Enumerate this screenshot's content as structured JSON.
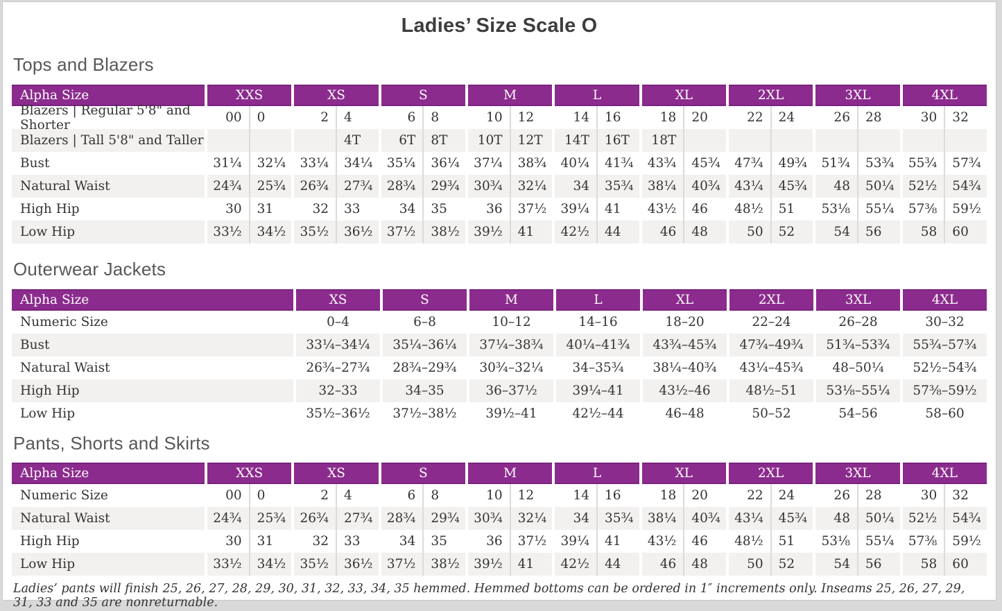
{
  "page": {
    "title": "Ladies’ Size Scale O",
    "footnote": "Ladies’ pants will finish 25, 26, 27, 28, 29, 30, 31, 32, 33, 34, 35 hemmed. Hemmed bottoms can be ordered in 1″ increments only. Inseams 25, 26, 27, 29, 31, 33 and 35 are nonreturnable."
  },
  "colors": {
    "header_purple": "#8C2B8E",
    "header_purple_dark": "#7A2380",
    "row_stripe": "#F2F1EF",
    "page_background": "#FFFFFF",
    "surround_gray": "#D9D9D9"
  },
  "tables": [
    {
      "section": "Tops and Blazers",
      "header_label": "Alpha Size",
      "split": true,
      "sizes": [
        "XXS",
        "XS",
        "S",
        "M",
        "L",
        "XL",
        "2XL",
        "3XL",
        "4XL"
      ],
      "rows": [
        {
          "label": "Blazers  |  Regular 5'8\" and Shorter",
          "cells": [
            [
              "00",
              "0"
            ],
            [
              "2",
              "4"
            ],
            [
              "6",
              "8"
            ],
            [
              "10",
              "12"
            ],
            [
              "14",
              "16"
            ],
            [
              "18",
              "20"
            ],
            [
              "22",
              "24"
            ],
            [
              "26",
              "28"
            ],
            [
              "30",
              "32"
            ]
          ]
        },
        {
          "label": "Blazers  |  Tall 5'8\" and Taller",
          "cells": [
            [
              "",
              ""
            ],
            [
              "",
              "4T"
            ],
            [
              "6T",
              "8T"
            ],
            [
              "10T",
              "12T"
            ],
            [
              "14T",
              "16T"
            ],
            [
              "18T",
              ""
            ],
            [
              "",
              ""
            ],
            [
              "",
              ""
            ],
            [
              "",
              ""
            ]
          ]
        },
        {
          "label": "Bust",
          "cells": [
            [
              "31¼",
              "32¼"
            ],
            [
              "33¼",
              "34¼"
            ],
            [
              "35¼",
              "36¼"
            ],
            [
              "37¼",
              "38¾"
            ],
            [
              "40¼",
              "41¾"
            ],
            [
              "43¾",
              "45¾"
            ],
            [
              "47¾",
              "49¾"
            ],
            [
              "51¾",
              "53¾"
            ],
            [
              "55¾",
              "57¾"
            ]
          ]
        },
        {
          "label": "Natural Waist",
          "cells": [
            [
              "24¾",
              "25¾"
            ],
            [
              "26¾",
              "27¾"
            ],
            [
              "28¾",
              "29¾"
            ],
            [
              "30¾",
              "32¼"
            ],
            [
              "34",
              "35¾"
            ],
            [
              "38¼",
              "40¾"
            ],
            [
              "43¼",
              "45¾"
            ],
            [
              "48",
              "50¼"
            ],
            [
              "52½",
              "54¾"
            ]
          ]
        },
        {
          "label": "High Hip",
          "cells": [
            [
              "30",
              "31"
            ],
            [
              "32",
              "33"
            ],
            [
              "34",
              "35"
            ],
            [
              "36",
              "37½"
            ],
            [
              "39¼",
              "41"
            ],
            [
              "43½",
              "46"
            ],
            [
              "48½",
              "51"
            ],
            [
              "53⅛",
              "55¼"
            ],
            [
              "57⅜",
              "59½"
            ]
          ]
        },
        {
          "label": "Low Hip",
          "cells": [
            [
              "33½",
              "34½"
            ],
            [
              "35½",
              "36½"
            ],
            [
              "37½",
              "38½"
            ],
            [
              "39½",
              "41"
            ],
            [
              "42½",
              "44"
            ],
            [
              "46",
              "48"
            ],
            [
              "50",
              "52"
            ],
            [
              "54",
              "56"
            ],
            [
              "58",
              "60"
            ]
          ]
        }
      ]
    },
    {
      "section": "Outerwear Jackets",
      "header_label": "Alpha Size",
      "split": false,
      "sizes": [
        "XS",
        "S",
        "M",
        "L",
        "XL",
        "2XL",
        "3XL",
        "4XL"
      ],
      "rows": [
        {
          "label": "Numeric Size",
          "cells": [
            "0–4",
            "6–8",
            "10–12",
            "14–16",
            "18–20",
            "22–24",
            "26–28",
            "30–32"
          ]
        },
        {
          "label": "Bust",
          "cells": [
            "33¼–34¼",
            "35¼–36¼",
            "37¼–38¾",
            "40¼–41¾",
            "43¾–45¾",
            "47¾–49¾",
            "51¾–53¾",
            "55¾–57¾"
          ]
        },
        {
          "label": "Natural Waist",
          "cells": [
            "26¾–27¾",
            "28¾–29¾",
            "30¾–32¼",
            "34–35¾",
            "38¼–40¾",
            "43¼–45¾",
            "48–50¼",
            "52½–54¾"
          ]
        },
        {
          "label": "High Hip",
          "cells": [
            "32–33",
            "34–35",
            "36–37½",
            "39¼–41",
            "43½–46",
            "48½–51",
            "53⅛–55¼",
            "57⅜–59½"
          ]
        },
        {
          "label": "Low Hip",
          "cells": [
            "35½–36½",
            "37½–38½",
            "39½–41",
            "42½–44",
            "46–48",
            "50–52",
            "54–56",
            "58–60"
          ]
        }
      ]
    },
    {
      "section": "Pants, Shorts and Skirts",
      "header_label": "Alpha Size",
      "split": true,
      "sizes": [
        "XXS",
        "XS",
        "S",
        "M",
        "L",
        "XL",
        "2XL",
        "3XL",
        "4XL"
      ],
      "rows": [
        {
          "label": "Numeric Size",
          "cells": [
            [
              "00",
              "0"
            ],
            [
              "2",
              "4"
            ],
            [
              "6",
              "8"
            ],
            [
              "10",
              "12"
            ],
            [
              "14",
              "16"
            ],
            [
              "18",
              "20"
            ],
            [
              "22",
              "24"
            ],
            [
              "26",
              "28"
            ],
            [
              "30",
              "32"
            ]
          ]
        },
        {
          "label": "Natural Waist",
          "cells": [
            [
              "24¾",
              "25¾"
            ],
            [
              "26¾",
              "27¾"
            ],
            [
              "28¾",
              "29¾"
            ],
            [
              "30¾",
              "32¼"
            ],
            [
              "34",
              "35¾"
            ],
            [
              "38¼",
              "40¾"
            ],
            [
              "43¼",
              "45¾"
            ],
            [
              "48",
              "50¼"
            ],
            [
              "52½",
              "54¾"
            ]
          ]
        },
        {
          "label": "High Hip",
          "cells": [
            [
              "30",
              "31"
            ],
            [
              "32",
              "33"
            ],
            [
              "34",
              "35"
            ],
            [
              "36",
              "37½"
            ],
            [
              "39¼",
              "41"
            ],
            [
              "43½",
              "46"
            ],
            [
              "48½",
              "51"
            ],
            [
              "53⅛",
              "55¼"
            ],
            [
              "57⅜",
              "59½"
            ]
          ]
        },
        {
          "label": "Low Hip",
          "cells": [
            [
              "33½",
              "34½"
            ],
            [
              "35½",
              "36½"
            ],
            [
              "37½",
              "38½"
            ],
            [
              "39½",
              "41"
            ],
            [
              "42½",
              "44"
            ],
            [
              "46",
              "48"
            ],
            [
              "50",
              "52"
            ],
            [
              "54",
              "56"
            ],
            [
              "58",
              "60"
            ]
          ]
        }
      ]
    }
  ]
}
